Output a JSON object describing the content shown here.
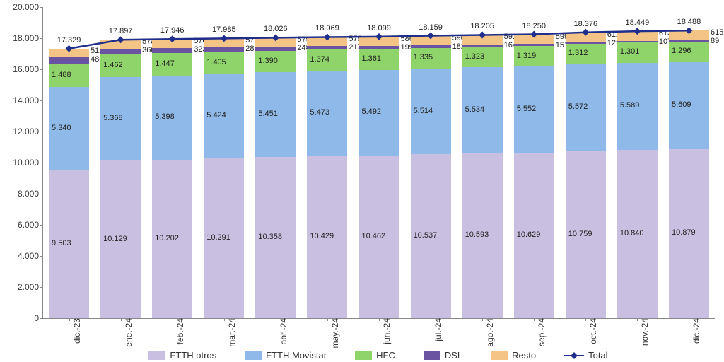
{
  "chart": {
    "type": "stacked-bar-with-line",
    "background_color": "#ffffff",
    "ylim": [
      0,
      20000
    ],
    "ytick_step": 2000,
    "ytick_format": "thousands_dot",
    "label_fontsize": 12,
    "value_fontsize": 11,
    "bar_width_ratio": 0.78,
    "categories": [
      "dic.-23",
      "ene.-24",
      "feb.-24",
      "mar.-24",
      "abr.-24",
      "may.-24",
      "jun.-24",
      "jul.-24",
      "ago.-24",
      "sep.-24",
      "oct.-24",
      "nov.-24",
      "dic.-24"
    ],
    "series": [
      {
        "key": "ftth_otros",
        "label": "FTTH otros",
        "color": "#c9bfe0",
        "values": [
          9503,
          10129,
          10202,
          10291,
          10358,
          10429,
          10462,
          10537,
          10593,
          10629,
          10759,
          10840,
          10879
        ]
      },
      {
        "key": "ftth_movistar",
        "label": "FTTH Movistar",
        "color": "#8fb9e8",
        "values": [
          5340,
          5368,
          5398,
          5424,
          5451,
          5473,
          5492,
          5514,
          5534,
          5552,
          5572,
          5589,
          5609
        ]
      },
      {
        "key": "hfc",
        "label": "HFC",
        "color": "#8fd46a",
        "values": [
          1488,
          1462,
          1447,
          1405,
          1390,
          1374,
          1361,
          1335,
          1323,
          1319,
          1312,
          1301,
          1296
        ]
      },
      {
        "key": "dsl",
        "label": "DSL",
        "color": "#6a53a0",
        "values": [
          486,
          360,
          323,
          288,
          248,
          217,
          199,
          182,
          164,
          151,
          122,
          107,
          89
        ]
      },
      {
        "key": "resto",
        "label": "Resto",
        "color": "#f4c487",
        "values": [
          512,
          578,
          576,
          577,
          579,
          576,
          586,
          590,
          591,
          599,
          612,
          613,
          615
        ]
      }
    ],
    "total_line": {
      "label": "Total",
      "color": "#1f2e8c",
      "marker": "diamond",
      "line_width": 2.5,
      "values": [
        17329,
        17897,
        17946,
        17985,
        18026,
        18069,
        18099,
        18159,
        18205,
        18250,
        18376,
        18449,
        18488
      ]
    },
    "label_colors": {
      "ftth_otros": "#222222",
      "ftth_movistar": "#222222",
      "hfc": "#222222",
      "dsl": "#222222",
      "resto": "#222222",
      "total": "#222222"
    }
  }
}
